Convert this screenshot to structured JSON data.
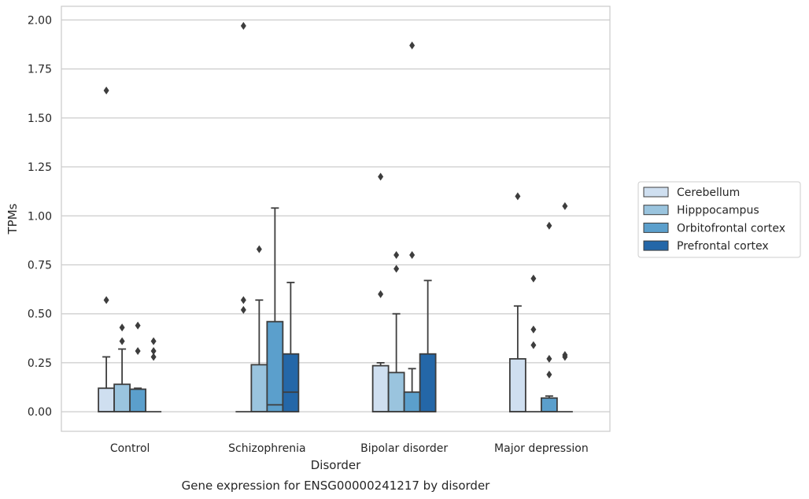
{
  "chart_data": {
    "type": "box",
    "title": "",
    "xlabel": "Disorder",
    "ylabel": "TPMs",
    "caption": "Gene expression for ENSG00000241217 by disorder",
    "categories": [
      "Control",
      "Schizophrenia",
      "Bipolar disorder",
      "Major depression"
    ],
    "ylim": [
      -0.1,
      2.07
    ],
    "yticks": [
      0.0,
      0.25,
      0.5,
      0.75,
      1.0,
      1.25,
      1.5,
      1.75,
      2.0
    ],
    "ytick_labels": [
      "0.00",
      "0.25",
      "0.50",
      "0.75",
      "1.00",
      "1.25",
      "1.50",
      "1.75",
      "2.00"
    ],
    "grid": "horizontal",
    "legend_position": "right",
    "series": [
      {
        "name": "Cerebellum",
        "color": "#cfdff0",
        "boxes": [
          {
            "q1": 0.0,
            "median": 0.0,
            "q3": 0.12,
            "whisker_low": 0.0,
            "whisker_high": 0.28,
            "outliers": [
              0.57,
              1.64
            ]
          },
          {
            "q1": 0.0,
            "median": 0.0,
            "q3": 0.0,
            "whisker_low": 0.0,
            "whisker_high": 0.0,
            "outliers": [
              0.52,
              0.57,
              1.97
            ]
          },
          {
            "q1": 0.0,
            "median": 0.0,
            "q3": 0.235,
            "whisker_low": 0.0,
            "whisker_high": 0.25,
            "outliers": [
              0.6,
              1.2
            ]
          },
          {
            "q1": 0.0,
            "median": 0.0,
            "q3": 0.27,
            "whisker_low": 0.0,
            "whisker_high": 0.54,
            "outliers": [
              1.1
            ]
          }
        ]
      },
      {
        "name": "Hipppocampus",
        "color": "#9ac4de",
        "boxes": [
          {
            "q1": 0.0,
            "median": 0.0,
            "q3": 0.14,
            "whisker_low": 0.0,
            "whisker_high": 0.32,
            "outliers": [
              0.36,
              0.43
            ]
          },
          {
            "q1": 0.0,
            "median": 0.0,
            "q3": 0.24,
            "whisker_low": 0.0,
            "whisker_high": 0.57,
            "outliers": [
              0.83
            ]
          },
          {
            "q1": 0.0,
            "median": 0.0,
            "q3": 0.2,
            "whisker_low": 0.0,
            "whisker_high": 0.5,
            "outliers": [
              0.73,
              0.8
            ]
          },
          {
            "q1": 0.0,
            "median": 0.0,
            "q3": 0.0,
            "whisker_low": 0.0,
            "whisker_high": 0.0,
            "outliers": [
              0.34,
              0.42,
              0.68
            ]
          }
        ]
      },
      {
        "name": "Orbitofrontal cortex",
        "color": "#5b9fcc",
        "boxes": [
          {
            "q1": 0.0,
            "median": 0.0,
            "q3": 0.115,
            "whisker_low": 0.0,
            "whisker_high": 0.12,
            "outliers": [
              0.31,
              0.44
            ]
          },
          {
            "q1": 0.0,
            "median": 0.035,
            "q3": 0.46,
            "whisker_low": 0.0,
            "whisker_high": 1.04,
            "outliers": []
          },
          {
            "q1": 0.0,
            "median": 0.0,
            "q3": 0.1,
            "whisker_low": 0.0,
            "whisker_high": 0.22,
            "outliers": [
              0.8,
              1.87
            ]
          },
          {
            "q1": 0.0,
            "median": 0.0,
            "q3": 0.07,
            "whisker_low": 0.0,
            "whisker_high": 0.08,
            "outliers": [
              0.19,
              0.27,
              0.95
            ]
          }
        ]
      },
      {
        "name": "Prefrontal cortex",
        "color": "#2467a8",
        "boxes": [
          {
            "q1": 0.0,
            "median": 0.0,
            "q3": 0.0,
            "whisker_low": 0.0,
            "whisker_high": 0.0,
            "outliers": [
              0.28,
              0.31,
              0.36
            ]
          },
          {
            "q1": 0.0,
            "median": 0.1,
            "q3": 0.295,
            "whisker_low": 0.0,
            "whisker_high": 0.66,
            "outliers": []
          },
          {
            "q1": 0.0,
            "median": 0.0,
            "q3": 0.295,
            "whisker_low": 0.0,
            "whisker_high": 0.67,
            "outliers": []
          },
          {
            "q1": 0.0,
            "median": 0.0,
            "q3": 0.0,
            "whisker_low": 0.0,
            "whisker_high": 0.0,
            "outliers": [
              0.28,
              0.29,
              1.05
            ]
          }
        ]
      }
    ]
  }
}
